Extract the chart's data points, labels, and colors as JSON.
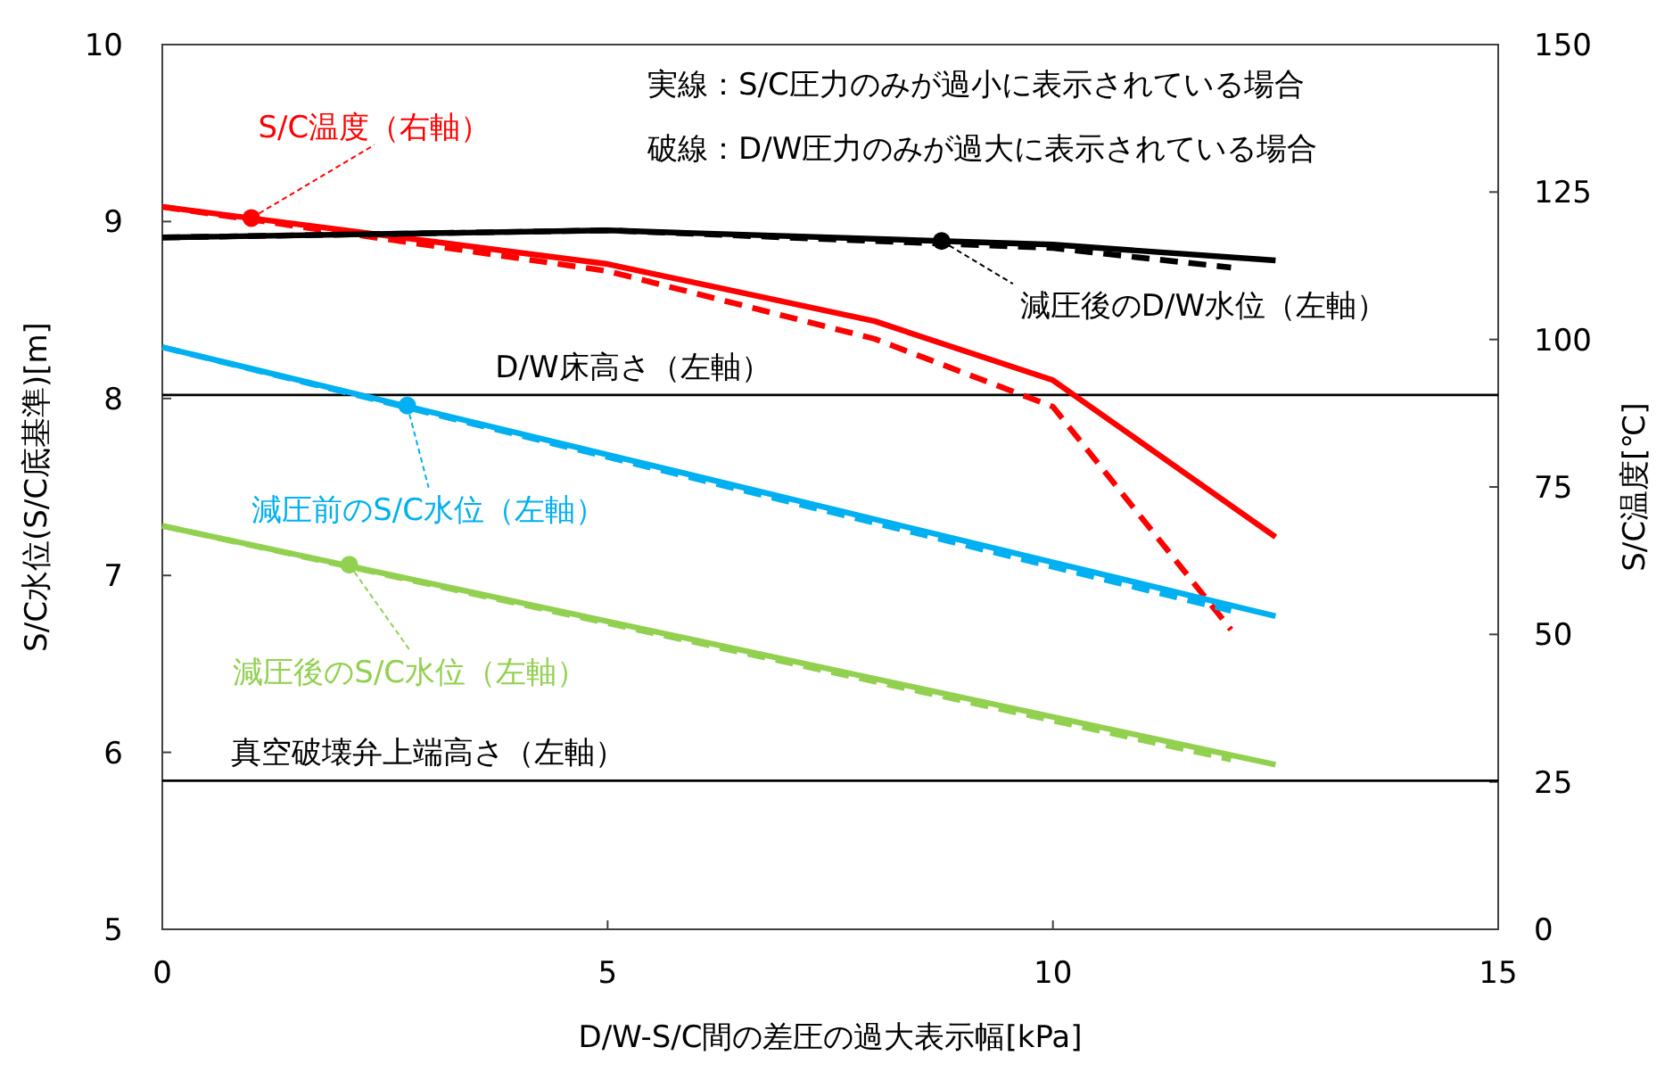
{
  "chart_data": {
    "type": "line",
    "xlabel": "D/W-S/C間の差圧の過大表示幅[kPa]",
    "ylabel": "S/C水位(S/C底基準)[m]",
    "y2label": "S/C温度[℃]",
    "xlim": [
      0,
      15
    ],
    "xticks": [
      0,
      5,
      10,
      15
    ],
    "ylim": [
      5,
      10
    ],
    "yticks": [
      5,
      6,
      7,
      8,
      9,
      10
    ],
    "y2lim": [
      0,
      150
    ],
    "y2ticks": [
      0,
      25,
      50,
      75,
      100,
      125,
      150
    ],
    "grid": false,
    "marker": "none",
    "series": [
      {
        "color": "#ff0000",
        "axis": "y2",
        "line_style": "solid",
        "x": [
          0,
          5,
          8,
          10,
          12.5
        ],
        "values": [
          122.5,
          112.8,
          103.1,
          93.1,
          66.5
        ]
      },
      {
        "color": "#ff0000",
        "axis": "y2",
        "line_style": "dashed",
        "x": [
          0,
          5,
          8,
          10,
          12
        ],
        "values": [
          122.5,
          111.6,
          100.1,
          88.6,
          50.8
        ]
      },
      {
        "color": "#000000",
        "line_style": "solid",
        "x": [
          0,
          5,
          10,
          12.5
        ],
        "values": [
          8.91,
          8.95,
          8.87,
          8.78
        ]
      },
      {
        "color": "#000000",
        "line_style": "dashed",
        "x": [
          0,
          5,
          10,
          12
        ],
        "values": [
          8.91,
          8.95,
          8.85,
          8.74
        ]
      },
      {
        "color": "#00b0f0",
        "line_style": "solid",
        "x": [
          0,
          12.5
        ],
        "values": [
          8.29,
          6.77
        ]
      },
      {
        "color": "#00b0f0",
        "line_style": "dashed",
        "x": [
          0,
          12
        ],
        "values": [
          8.29,
          6.8
        ]
      },
      {
        "color": "#92d050",
        "line_style": "solid",
        "x": [
          0,
          12.5
        ],
        "values": [
          7.28,
          5.93
        ]
      },
      {
        "color": "#92d050",
        "line_style": "dashed",
        "x": [
          0,
          12
        ],
        "values": [
          7.28,
          5.96
        ]
      }
    ],
    "ref_lines": [
      {
        "axis": "y",
        "value": 8.02,
        "label": "D/W床高さ（左軸）",
        "color": "#000000"
      },
      {
        "axis": "y",
        "value": 5.84,
        "label": "真空破壊弁上端高さ（左軸）",
        "color": "#000000"
      }
    ],
    "annotations": [
      "実線：S/C圧力のみが過小に表示されている場合",
      "破線：D/W圧力のみが過大に表示されている場合",
      {
        "text": "S/C温度（右軸）",
        "x": 1,
        "y": 9.02
      },
      {
        "text": "減圧後のD/W水位（左軸）",
        "x": 8.75,
        "y": 8.89
      },
      {
        "text": "減圧前のS/C水位（左軸）",
        "x": 2.75,
        "y": 7.96
      },
      {
        "text": "減圧後のS/C水位（左軸）",
        "x": 2.1,
        "y": 7.06
      }
    ]
  }
}
